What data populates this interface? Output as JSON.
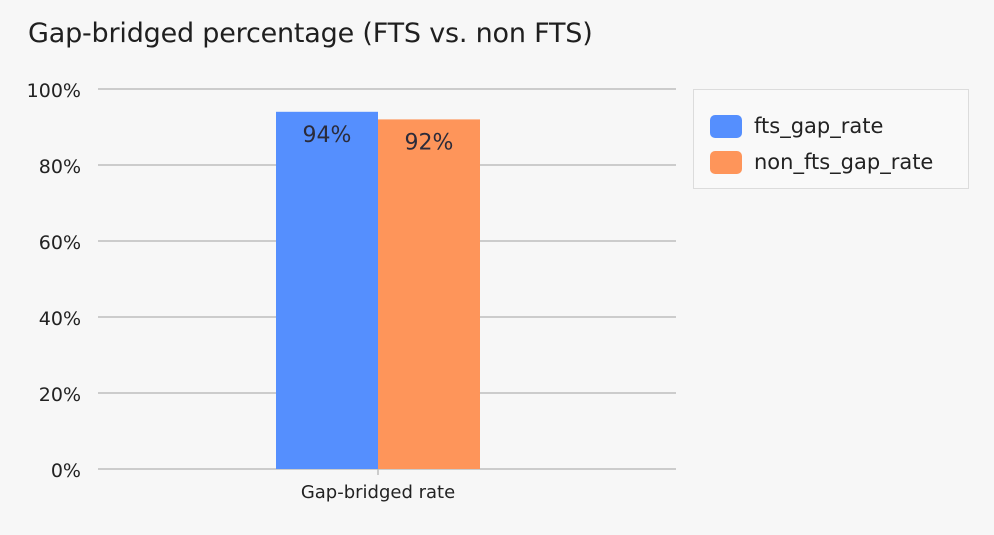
{
  "chart_data": {
    "type": "bar",
    "title": "Gap-bridged percentage (FTS vs. non FTS)",
    "xlabel": "",
    "ylabel": "",
    "categories": [
      "Gap-bridged rate"
    ],
    "series": [
      {
        "name": "fts_gap_rate",
        "values": [
          0.94
        ],
        "data_labels": [
          "94%"
        ],
        "color": "#558ffe"
      },
      {
        "name": "non_fts_gap_rate",
        "values": [
          0.92
        ],
        "data_labels": [
          "92%"
        ],
        "color": "#fe955a"
      }
    ],
    "ylim": [
      0,
      1
    ],
    "yticks": [
      0,
      0.2,
      0.4,
      0.6,
      0.8,
      1.0
    ],
    "ytick_labels": [
      "0%",
      "20%",
      "40%",
      "60%",
      "80%",
      "100%"
    ],
    "grid": true,
    "legend": "right"
  },
  "colors": {
    "background": "#f7f7f7",
    "grid": "#bdbdbd",
    "text": "#222222"
  }
}
